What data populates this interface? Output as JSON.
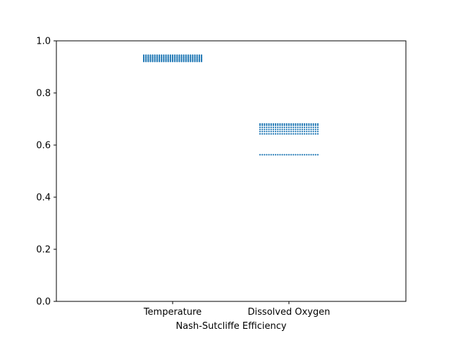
{
  "chart_data": {
    "type": "scatter",
    "title": "",
    "xlabel": "Nash-Sutcliffe Efficiency",
    "ylabel": "",
    "categories": [
      "Temperature",
      "Dissolved Oxygen"
    ],
    "ylim": [
      0,
      1
    ],
    "yticks": [
      "0.0",
      "0.2",
      "0.4",
      "0.6",
      "0.8",
      "1.0"
    ],
    "grid": false,
    "marker_color": "#1f77b4",
    "series": [
      {
        "category": "Temperature",
        "values": [
          0.921,
          0.925,
          0.929,
          0.933,
          0.937,
          0.941,
          0.945
        ]
      },
      {
        "category": "Dissolved Oxygen",
        "values": [
          0.563,
          0.643,
          0.652,
          0.66,
          0.668,
          0.676,
          0.681
        ]
      }
    ]
  }
}
